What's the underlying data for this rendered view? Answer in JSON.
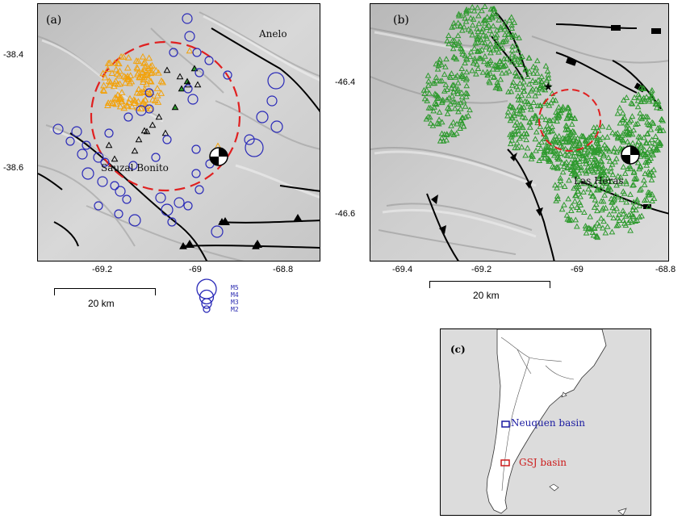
{
  "panel_a": {
    "label": "(a)",
    "places": {
      "sauzal": "Sauzal Bonito",
      "anelo": "Anelo"
    },
    "lat_ticks": [
      "-38.4",
      "-38.6"
    ],
    "lon_ticks": [
      "-69.2",
      "-69",
      "-68.8"
    ],
    "scale": "20 km",
    "magnitude_legend": [
      "M5",
      "M4",
      "M3",
      "M2"
    ]
  },
  "panel_b": {
    "label": "(b)",
    "places": {
      "las_heras": "Las Heras"
    },
    "lat_ticks": [
      "-46.4",
      "-46.6"
    ],
    "lon_ticks": [
      "-69.4",
      "-69.2",
      "-69",
      "-68.8"
    ],
    "scale": "20 km"
  },
  "panel_c": {
    "label": "(c)",
    "boxes": [
      {
        "label": "Neuquen basin",
        "color": "#1a1aa0"
      },
      {
        "label": "GSJ basin",
        "color": "#cc1a1a"
      }
    ]
  },
  "colors": {
    "orange_triangles": "#f2a20c",
    "green_triangles": "#2e9a2e",
    "blue_circles": "#2a2ab8",
    "red_dashed_circle": "#e02020"
  }
}
